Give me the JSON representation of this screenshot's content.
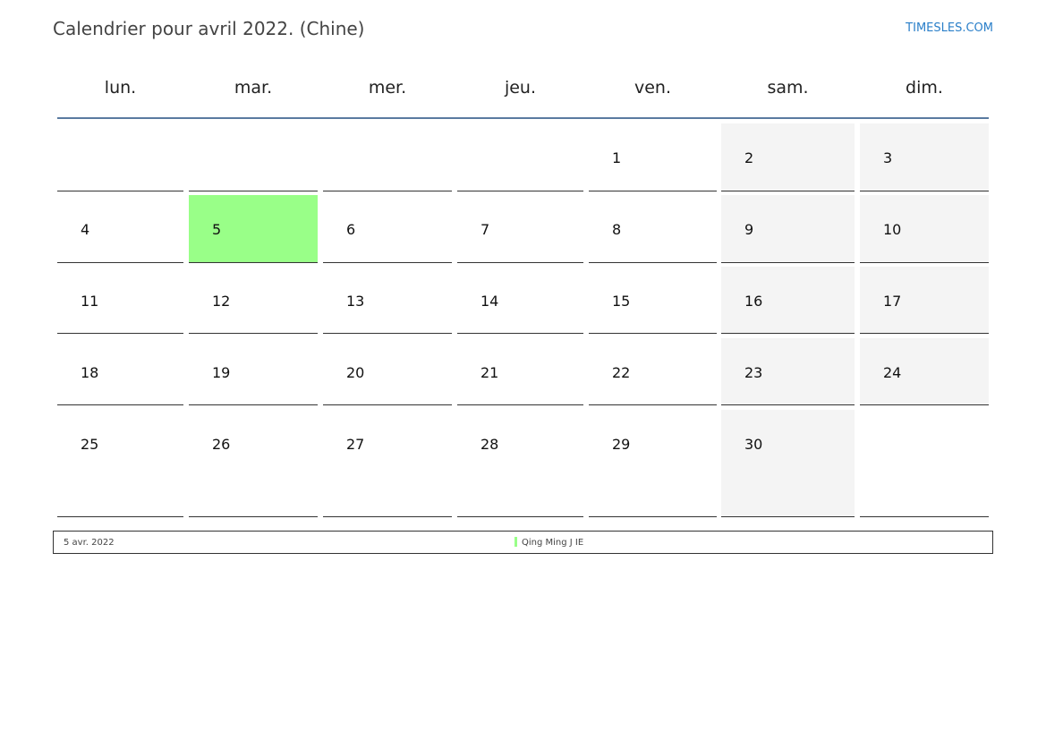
{
  "header": {
    "title": "Calendrier pour avril 2022. (Chine)",
    "brand": "TIMESLES.COM"
  },
  "weekdays": [
    "lun.",
    "mar.",
    "mer.",
    "jeu.",
    "ven.",
    "sam.",
    "dim."
  ],
  "weeks": [
    [
      "",
      "",
      "",
      "",
      "1",
      "2",
      "3"
    ],
    [
      "4",
      "5",
      "6",
      "7",
      "8",
      "9",
      "10"
    ],
    [
      "11",
      "12",
      "13",
      "14",
      "15",
      "16",
      "17"
    ],
    [
      "18",
      "19",
      "20",
      "21",
      "22",
      "23",
      "24"
    ],
    [
      "25",
      "26",
      "27",
      "28",
      "29",
      "30",
      ""
    ]
  ],
  "highlighted_day": "5",
  "colors": {
    "holiday": "#99ff88",
    "weekend": "#f4f4f4",
    "header_line": "#5a7aa0"
  },
  "holidays": [
    {
      "date": "5 avr. 2022",
      "name": "Qing Ming J IE"
    }
  ]
}
